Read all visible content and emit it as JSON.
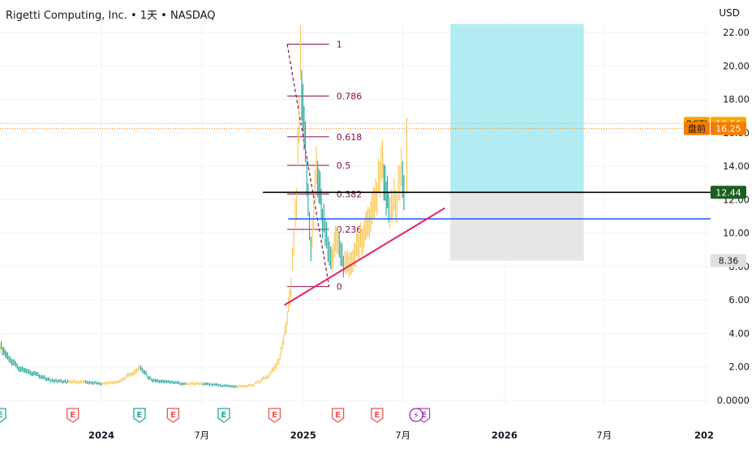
{
  "header": {
    "symbol_line": "Rigetti Computing, Inc. • 1天 • NASDAQ",
    "currency": "USD"
  },
  "chart_data": {
    "type": "line",
    "title": "Rigetti Computing, Inc. • 1天 • NASDAQ",
    "y_axis": {
      "ticks": [
        0,
        2,
        4,
        6,
        8,
        10,
        12,
        14,
        16,
        18,
        20,
        22
      ],
      "tick_labels": [
        "0.0000",
        "2.00",
        "4.00",
        "6.00",
        "8.00",
        "10.00",
        "12.00",
        "14.00",
        "16.00",
        "18.00",
        "20.00",
        "22.00"
      ],
      "range": [
        0,
        22.5
      ]
    },
    "x_axis": {
      "tick_labels": [
        "2024",
        "7月",
        "2025",
        "7月",
        "2026",
        "7月",
        "202"
      ],
      "tick_dates": [
        "2024-01-01",
        "2024-07-01",
        "2025-01-01",
        "2025-07-01",
        "2026-01-01",
        "2026-07-01",
        "2027-01-01"
      ],
      "range": [
        "2023-07-01",
        "2027-01-10"
      ]
    },
    "series": [
      {
        "type": "ohlc",
        "up_color": "#f9c74f",
        "down_color": "#26a69a",
        "points": [
          [
            "2023-07-01",
            3.3
          ],
          [
            "2023-07-15",
            2.6
          ],
          [
            "2023-08-01",
            2.0
          ],
          [
            "2023-09-01",
            1.6
          ],
          [
            "2023-10-01",
            1.2
          ],
          [
            "2023-11-01",
            1.1
          ],
          [
            "2023-12-01",
            1.1
          ],
          [
            "2024-01-01",
            1.0
          ],
          [
            "2024-02-01",
            1.1
          ],
          [
            "2024-03-01",
            1.7
          ],
          [
            "2024-03-10",
            2.0
          ],
          [
            "2024-04-01",
            1.2
          ],
          [
            "2024-05-01",
            1.1
          ],
          [
            "2024-06-01",
            1.0
          ],
          [
            "2024-07-01",
            1.0
          ],
          [
            "2024-08-01",
            0.9
          ],
          [
            "2024-09-01",
            0.8
          ],
          [
            "2024-10-01",
            0.9
          ],
          [
            "2024-11-01",
            1.5
          ],
          [
            "2024-11-20",
            2.5
          ],
          [
            "2024-12-01",
            4.5
          ],
          [
            "2024-12-10",
            7.0
          ],
          [
            "2024-12-20",
            12.0
          ],
          [
            "2024-12-27",
            20.0
          ],
          [
            "2025-01-05",
            15.0
          ],
          [
            "2025-01-15",
            9.0
          ],
          [
            "2025-01-25",
            14.0
          ],
          [
            "2025-02-05",
            11.0
          ],
          [
            "2025-02-20",
            8.5
          ],
          [
            "2025-03-05",
            10.0
          ],
          [
            "2025-03-15",
            8.0
          ],
          [
            "2025-04-01",
            8.5
          ],
          [
            "2025-04-15",
            9.5
          ],
          [
            "2025-05-01",
            11.0
          ],
          [
            "2025-05-15",
            12.5
          ],
          [
            "2025-05-25",
            14.0
          ],
          [
            "2025-06-05",
            11.5
          ],
          [
            "2025-06-20",
            12.0
          ],
          [
            "2025-06-28",
            14.0
          ],
          [
            "2025-07-05",
            12.44
          ]
        ]
      }
    ],
    "price_labels": [
      {
        "label": "RGTI",
        "value": 16.56,
        "color": "#f7a600"
      },
      {
        "label": "盘前",
        "value": 16.25,
        "color": "#f57c00"
      },
      {
        "label": "",
        "value": 12.44,
        "color": "#1b5e20"
      },
      {
        "label": "",
        "value": 8.36,
        "color": "#e0e0e0"
      }
    ],
    "fibonacci": {
      "color": "#880e4f",
      "high": 21.3,
      "low": 6.8,
      "levels": [
        {
          "ratio": 1,
          "label": "1"
        },
        {
          "ratio": 0.786,
          "label": "0.786"
        },
        {
          "ratio": 0.618,
          "label": "0.618"
        },
        {
          "ratio": 0.5,
          "label": "0.5"
        },
        {
          "ratio": 0.382,
          "label": "0.382"
        },
        {
          "ratio": 0.236,
          "label": "0.236"
        },
        {
          "ratio": 0,
          "label": "0"
        }
      ],
      "start_date": "2024-12-03",
      "end_date": "2025-02-17"
    },
    "horizontal_lines": [
      {
        "value": 12.44,
        "color": "#000000",
        "from": "2024-10-20"
      },
      {
        "value": 10.85,
        "color": "#2962ff",
        "from": "2024-12-05"
      }
    ],
    "trend_line": {
      "color": "#e91e63",
      "from": [
        "2024-11-28",
        5.7
      ],
      "to": [
        "2025-09-15",
        11.5
      ]
    },
    "position_box": {
      "start": "2025-09-25",
      "end": "2026-05-25",
      "entry": 12.44,
      "target": 22.5,
      "stop": 8.36,
      "profit_color": "#b2ebf2",
      "loss_color": "#e6e6e6"
    },
    "earnings_markers": [
      {
        "date": "2023-07-01",
        "label": "E",
        "color": "#26a69a"
      },
      {
        "date": "2023-11-10",
        "label": "E",
        "color": "#ef5350"
      },
      {
        "date": "2024-03-10",
        "label": "E",
        "color": "#26a69a"
      },
      {
        "date": "2024-05-10",
        "label": "E",
        "color": "#ef5350"
      },
      {
        "date": "2024-08-10",
        "label": "E",
        "color": "#26a69a"
      },
      {
        "date": "2024-11-10",
        "label": "E",
        "color": "#ef5350"
      },
      {
        "date": "2025-03-05",
        "label": "E",
        "color": "#ef5350"
      },
      {
        "date": "2025-05-15",
        "label": "E",
        "color": "#ef5350"
      },
      {
        "date": "2025-08-08",
        "label": "E",
        "color": "#ab47bc"
      }
    ],
    "event_markers": [
      {
        "date": "2025-07-25",
        "icon": "lightning-icon",
        "color": "#9c27b0"
      }
    ]
  }
}
